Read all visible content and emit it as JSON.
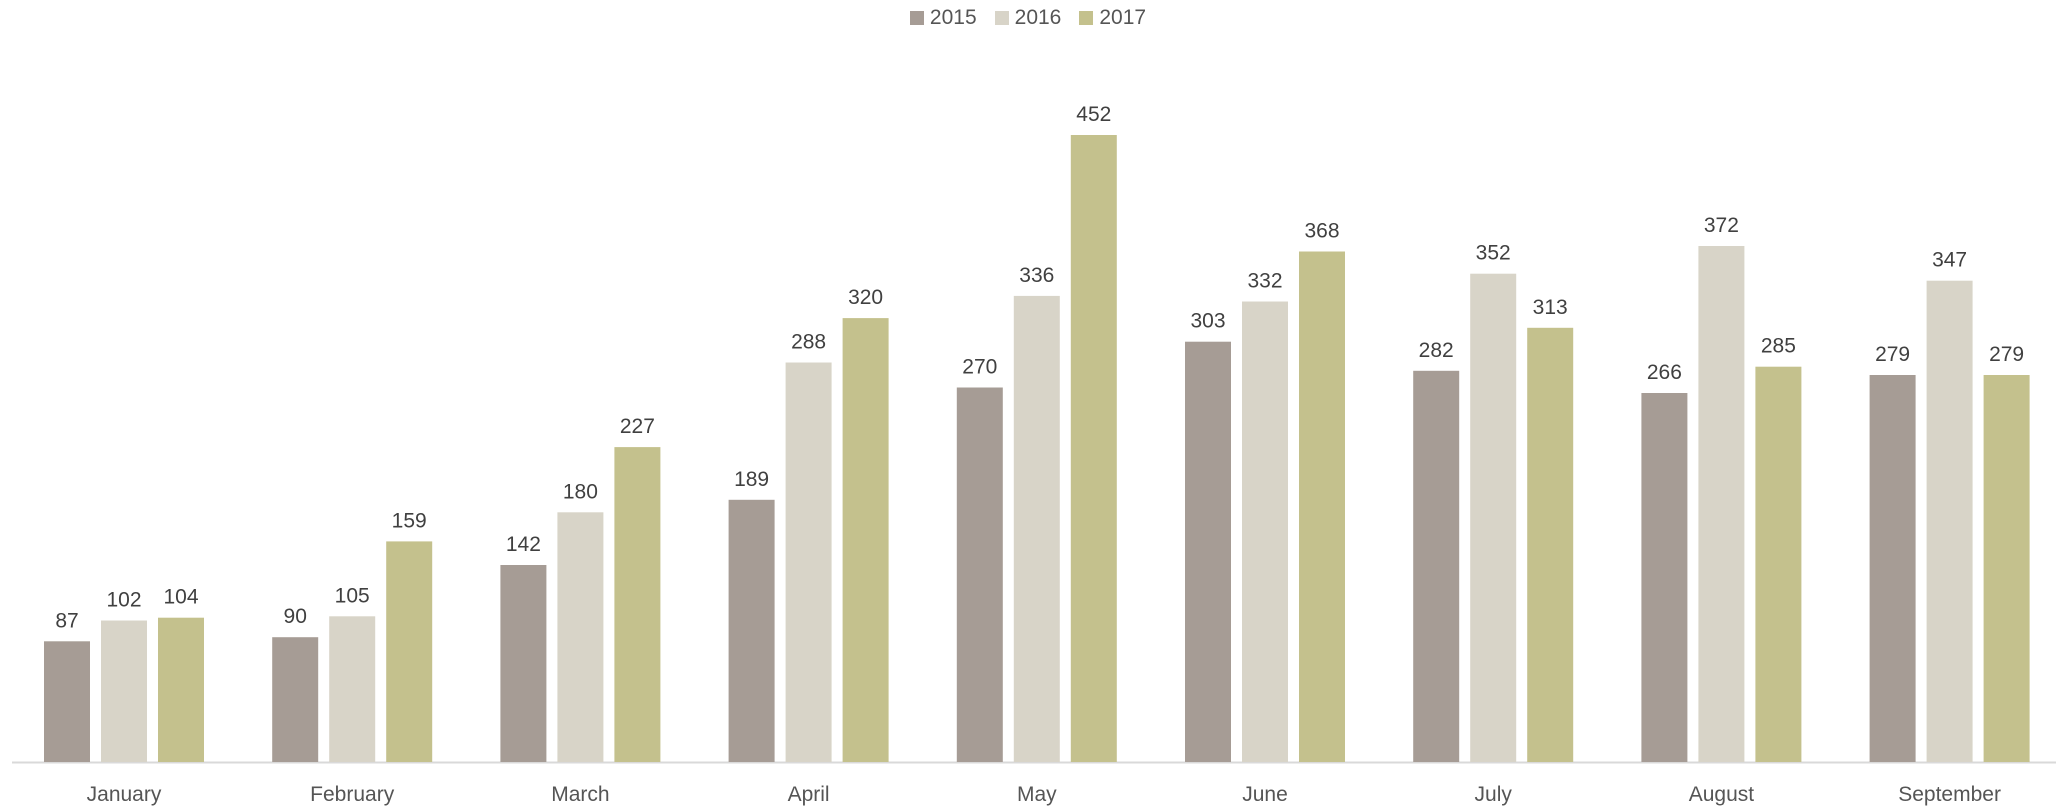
{
  "chart_data": {
    "type": "bar",
    "categories": [
      "January",
      "February",
      "March",
      "April",
      "May",
      "June",
      "July",
      "August",
      "September"
    ],
    "series": [
      {
        "name": "2015",
        "color": "#a69c95",
        "values": [
          87,
          90,
          142,
          189,
          270,
          303,
          282,
          266,
          279
        ]
      },
      {
        "name": "2016",
        "color": "#d8d4c8",
        "values": [
          102,
          105,
          180,
          288,
          336,
          332,
          352,
          372,
          347
        ]
      },
      {
        "name": "2017",
        "color": "#c4c18d",
        "values": [
          104,
          159,
          227,
          320,
          452,
          368,
          313,
          285,
          279
        ]
      }
    ],
    "title": "",
    "xlabel": "",
    "ylabel": "",
    "ylim": [
      0,
      480
    ],
    "grid": false,
    "legend_position": "top",
    "data_labels": true
  }
}
